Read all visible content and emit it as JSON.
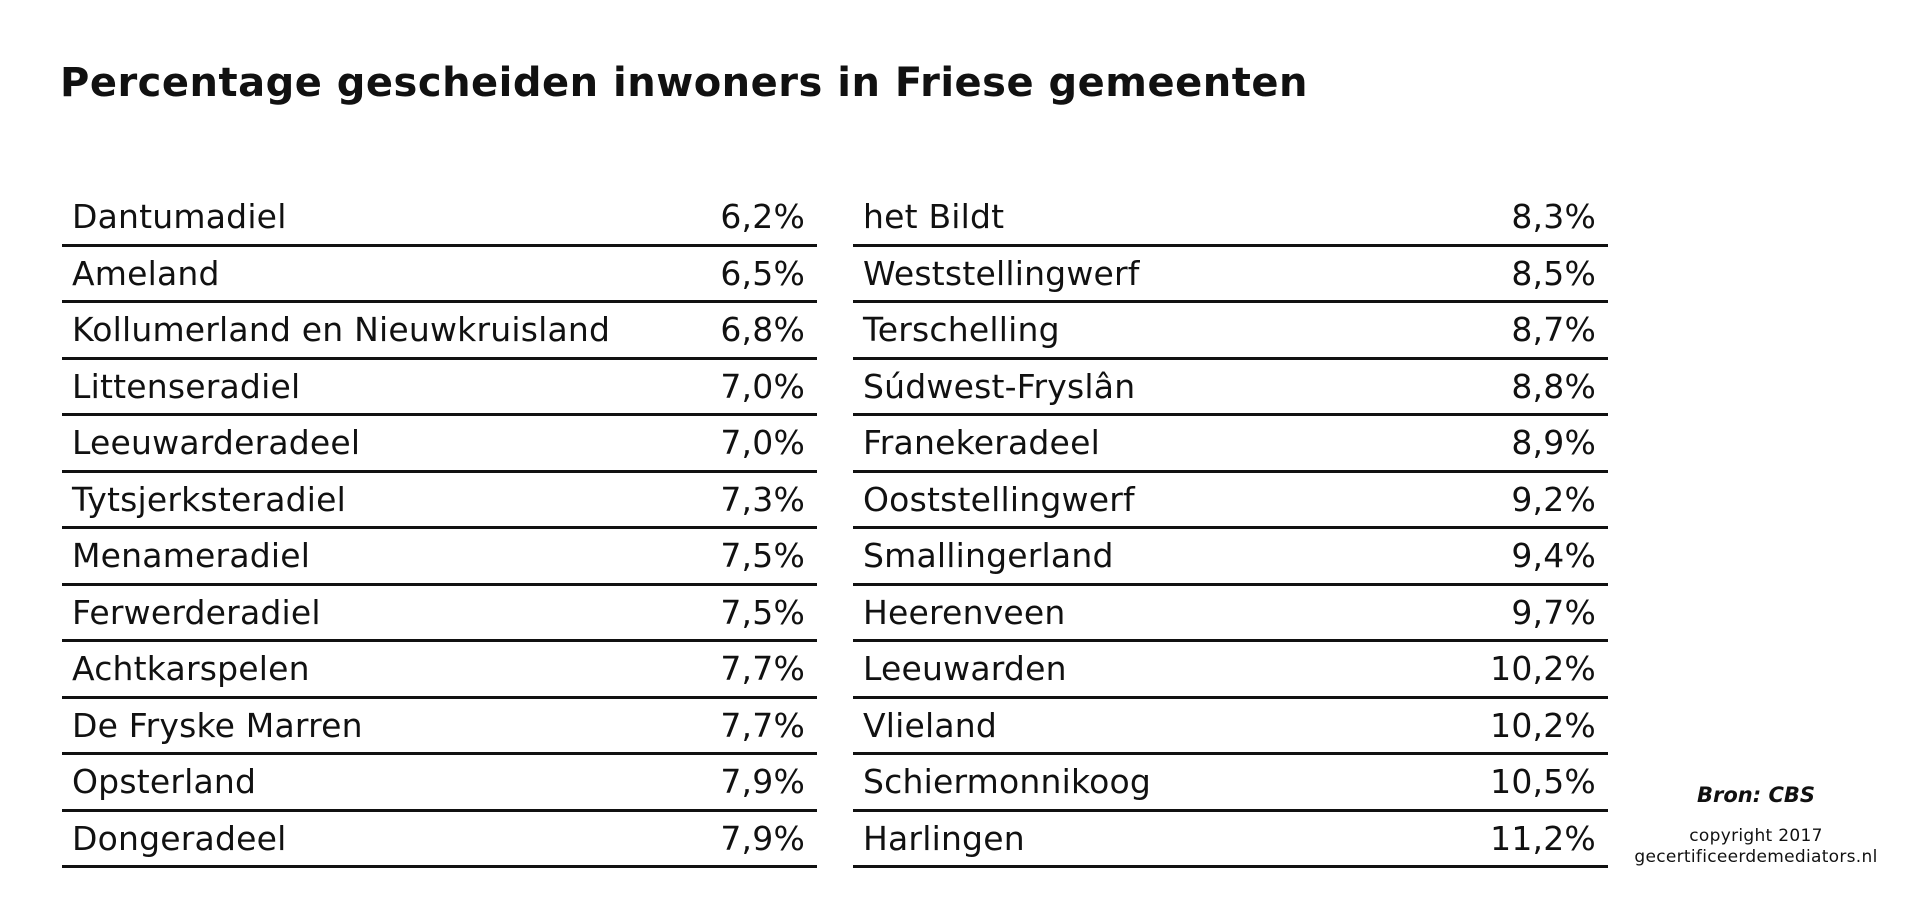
{
  "title": "Percentage gescheiden inwoners in Friese gemeenten",
  "left_rows": [
    {
      "name": "Dantumadiel",
      "pct": "6,2%"
    },
    {
      "name": "Ameland",
      "pct": "6,5%"
    },
    {
      "name": "Kollumerland en Nieuwkruisland",
      "pct": "6,8%"
    },
    {
      "name": "Littenseradiel",
      "pct": "7,0%"
    },
    {
      "name": "Leeuwarderadeel",
      "pct": "7,0%"
    },
    {
      "name": "Tytsjerksteradiel",
      "pct": "7,3%"
    },
    {
      "name": "Menameradiel",
      "pct": "7,5%"
    },
    {
      "name": "Ferwerderadiel",
      "pct": "7,5%"
    },
    {
      "name": "Achtkarspelen",
      "pct": "7,7%"
    },
    {
      "name": "De Fryske Marren",
      "pct": "7,7%"
    },
    {
      "name": "Opsterland",
      "pct": "7,9%"
    },
    {
      "name": "Dongeradeel",
      "pct": "7,9%"
    }
  ],
  "right_rows": [
    {
      "name": "het Bildt",
      "pct": "8,3%"
    },
    {
      "name": "Weststellingwerf",
      "pct": "8,5%"
    },
    {
      "name": "Terschelling",
      "pct": "8,7%"
    },
    {
      "name": "Súdwest-Fryslân",
      "pct": "8,8%"
    },
    {
      "name": "Franekeradeel",
      "pct": "8,9%"
    },
    {
      "name": "Ooststellingwerf",
      "pct": "9,2%"
    },
    {
      "name": "Smallingerland",
      "pct": "9,4%"
    },
    {
      "name": "Heerenveen",
      "pct": "9,7%"
    },
    {
      "name": "Leeuwarden",
      "pct": "10,2%"
    },
    {
      "name": "Vlieland",
      "pct": "10,2%"
    },
    {
      "name": "Schiermonnikoog",
      "pct": "10,5%"
    },
    {
      "name": "Harlingen",
      "pct": "11,2%"
    }
  ],
  "source": "Bron: CBS",
  "copyright_line1": "copyright 2017",
  "copyright_line2": "gecertificeerdemediators.nl"
}
